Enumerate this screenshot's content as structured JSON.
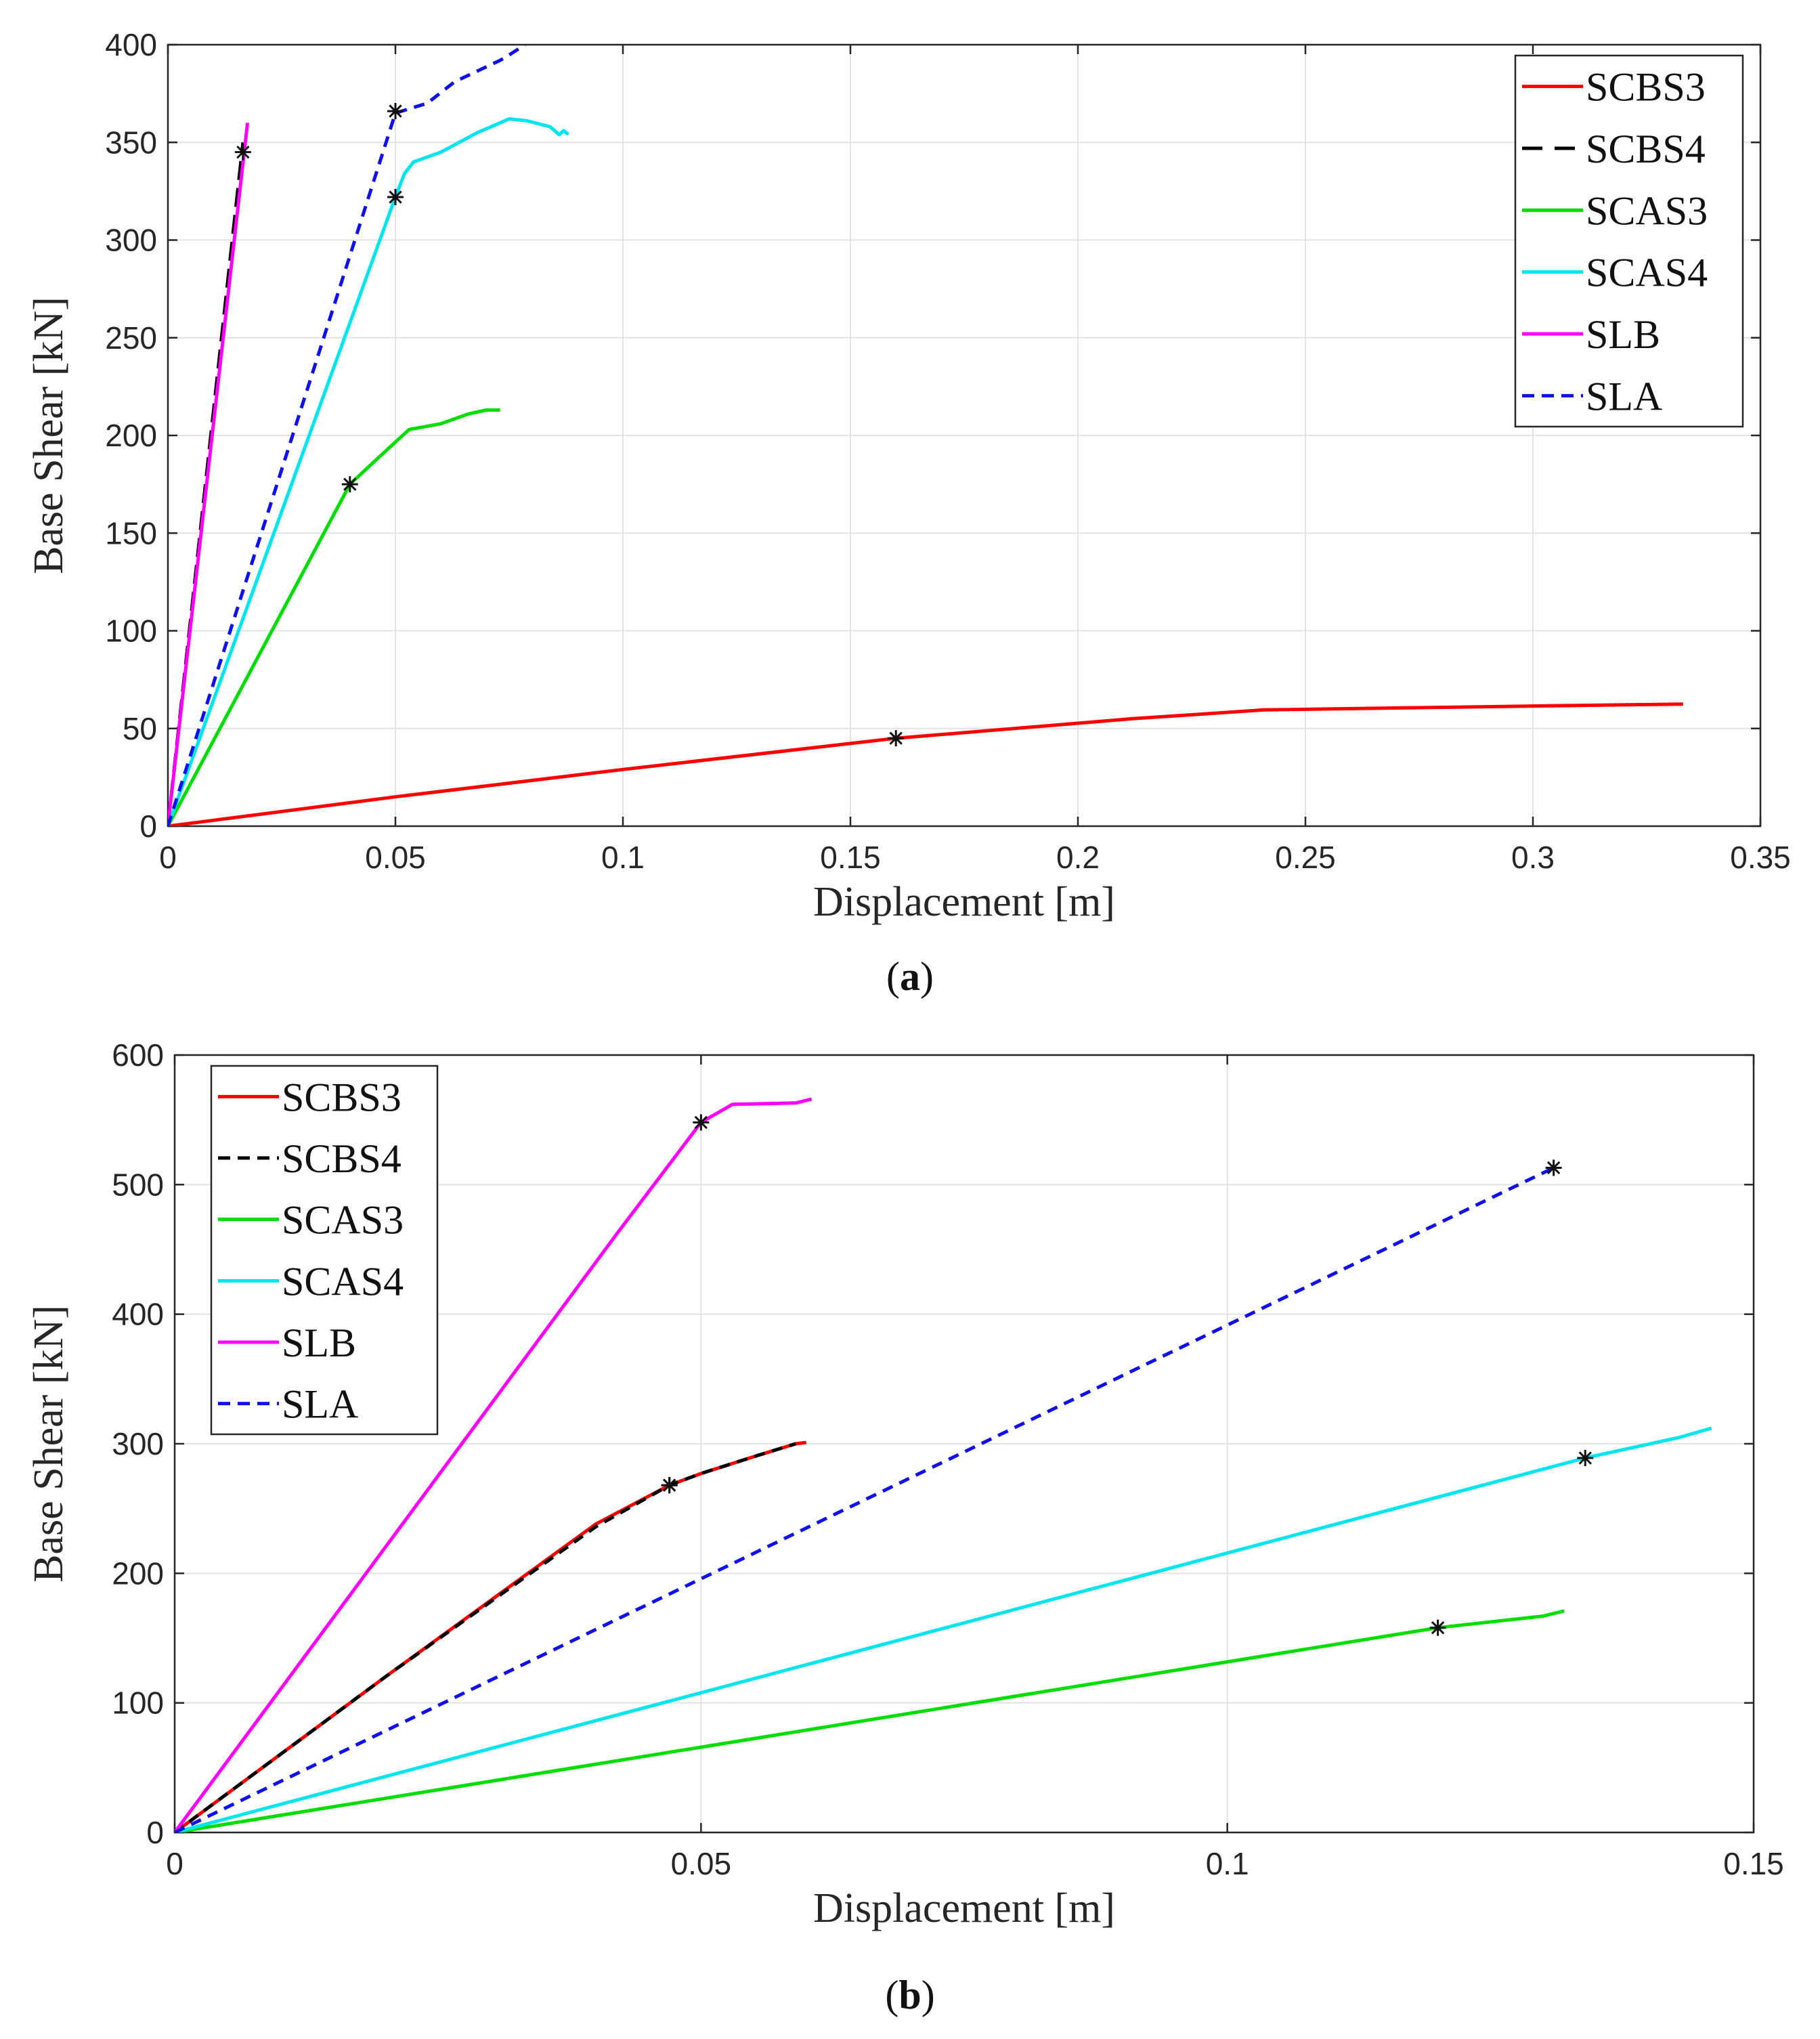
{
  "chart_data": [
    {
      "id": "a",
      "type": "line",
      "caption_letter": "a",
      "xlabel": "Displacement [m]",
      "ylabel": "Base Shear [kN]",
      "xlim": [
        0,
        0.35
      ],
      "ylim": [
        0,
        400
      ],
      "xticks": [
        0,
        0.05,
        0.1,
        0.15,
        0.2,
        0.25,
        0.3,
        0.35
      ],
      "xtick_labels": [
        "0",
        "0.05",
        "0.1",
        "0.15",
        "0.2",
        "0.25",
        "0.3",
        "0.35"
      ],
      "yticks": [
        0,
        50,
        100,
        150,
        200,
        250,
        300,
        350,
        400
      ],
      "ytick_labels": [
        "0",
        "50",
        "100",
        "150",
        "200",
        "250",
        "300",
        "350",
        "400"
      ],
      "grid": true,
      "legend_position": "top-right",
      "series": [
        {
          "name": "SCBS3",
          "color": "#ff0000",
          "dash": "solid",
          "points": [
            [
              0,
              0
            ],
            [
              0.05,
              15
            ],
            [
              0.1,
              29
            ],
            [
              0.16,
              45
            ],
            [
              0.212,
              55
            ],
            [
              0.241,
              59.5
            ],
            [
              0.3,
              61.5
            ],
            [
              0.333,
              62.5
            ]
          ],
          "yield": [
            0.16,
            45
          ]
        },
        {
          "name": "SCBS4",
          "color": "#000000",
          "dash": "dashed-long",
          "points": [
            [
              0,
              0
            ],
            [
              0.0165,
              350
            ]
          ],
          "yield": [
            0.0165,
            345
          ]
        },
        {
          "name": "SCAS3",
          "color": "#00dd00",
          "dash": "solid",
          "points": [
            [
              0,
              0
            ],
            [
              0.04,
              175
            ],
            [
              0.046,
              188
            ],
            [
              0.053,
              203
            ],
            [
              0.06,
              206
            ],
            [
              0.066,
              211
            ],
            [
              0.07,
              213
            ],
            [
              0.073,
              213
            ]
          ],
          "yield": [
            0.04,
            175
          ]
        },
        {
          "name": "SCAS4",
          "color": "#00e5ee",
          "dash": "solid",
          "points": [
            [
              0,
              0
            ],
            [
              0.05,
              322
            ],
            [
              0.052,
              334
            ],
            [
              0.054,
              340
            ],
            [
              0.06,
              345
            ],
            [
              0.068,
              355
            ],
            [
              0.072,
              359
            ],
            [
              0.075,
              362
            ],
            [
              0.079,
              361
            ],
            [
              0.084,
              358
            ],
            [
              0.086,
              354
            ],
            [
              0.087,
              356
            ],
            [
              0.088,
              354
            ]
          ],
          "yield": [
            0.05,
            322
          ]
        },
        {
          "name": "SLB",
          "color": "#ff00ff",
          "dash": "solid",
          "points": [
            [
              0,
              0
            ],
            [
              0.0175,
              360
            ]
          ],
          "yield": null
        },
        {
          "name": "SLA",
          "color": "#1010ee",
          "dash": "dashed",
          "points": [
            [
              0,
              0
            ],
            [
              0.05,
              365
            ],
            [
              0.057,
              370
            ],
            [
              0.063,
              381
            ],
            [
              0.073,
              392
            ],
            [
              0.0745,
              394
            ],
            [
              0.0785,
              400
            ]
          ],
          "yield": [
            0.05,
            366
          ]
        }
      ]
    },
    {
      "id": "b",
      "type": "line",
      "caption_letter": "b",
      "xlabel": "Displacement [m]",
      "ylabel": "Base Shear [kN]",
      "xlim": [
        0,
        0.15
      ],
      "ylim": [
        0,
        600
      ],
      "xticks": [
        0,
        0.05,
        0.1,
        0.15
      ],
      "xtick_labels": [
        "0",
        "0.05",
        "0.1",
        "0.15"
      ],
      "yticks": [
        0,
        100,
        200,
        300,
        400,
        500,
        600
      ],
      "ytick_labels": [
        "0",
        "100",
        "200",
        "300",
        "400",
        "500",
        "600"
      ],
      "grid": true,
      "legend_position": "top-left",
      "series": [
        {
          "name": "SCBS3",
          "color": "#ff0000",
          "dash": "solid",
          "points": [
            [
              0,
              0
            ],
            [
              0.02,
              120
            ],
            [
              0.04,
              238
            ],
            [
              0.047,
              268
            ],
            [
              0.05,
              277
            ],
            [
              0.055,
              290
            ],
            [
              0.059,
              300
            ],
            [
              0.06,
              301
            ]
          ],
          "yield": [
            0.047,
            268
          ]
        },
        {
          "name": "SCBS4",
          "color": "#000000",
          "dash": "dashed",
          "points": [
            [
              0,
              0
            ],
            [
              0.02,
              120
            ],
            [
              0.04,
              236
            ],
            [
              0.047,
              268
            ],
            [
              0.05,
              277
            ],
            [
              0.055,
              290
            ],
            [
              0.059,
              300
            ]
          ],
          "yield": [
            0.047,
            268
          ]
        },
        {
          "name": "SCAS3",
          "color": "#00dd00",
          "dash": "solid",
          "points": [
            [
              0,
              0
            ],
            [
              0.12,
              158
            ],
            [
              0.13,
              167
            ],
            [
              0.132,
              171
            ]
          ],
          "yield": [
            0.12,
            158
          ]
        },
        {
          "name": "SCAS4",
          "color": "#00e5ee",
          "dash": "solid",
          "points": [
            [
              0,
              0
            ],
            [
              0.134,
              289
            ],
            [
              0.143,
              305
            ],
            [
              0.146,
              312
            ]
          ],
          "yield": [
            0.134,
            289
          ]
        },
        {
          "name": "SLB",
          "color": "#ff00ff",
          "dash": "solid",
          "points": [
            [
              0,
              0
            ],
            [
              0.042,
              462
            ],
            [
              0.05,
              548
            ],
            [
              0.053,
              562
            ],
            [
              0.059,
              563
            ],
            [
              0.0605,
              566
            ]
          ],
          "yield": [
            0.05,
            548
          ]
        },
        {
          "name": "SLA",
          "color": "#1010ee",
          "dash": "dashed",
          "points": [
            [
              0,
              0
            ],
            [
              0.131,
              513
            ]
          ],
          "yield": [
            0.131,
            513
          ]
        }
      ]
    }
  ]
}
